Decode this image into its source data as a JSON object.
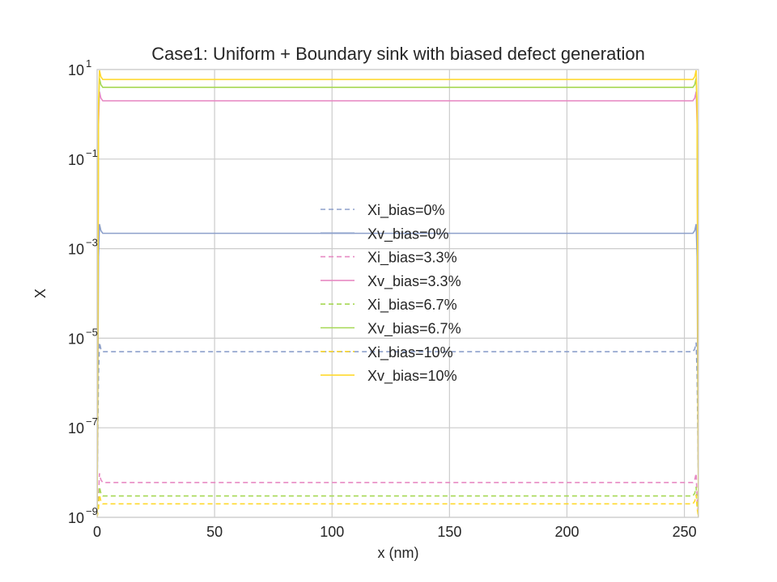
{
  "chart_data": {
    "type": "line",
    "title": "Case1: Uniform + Boundary sink with biased defect generation",
    "xlabel": "x (nm)",
    "ylabel": "X",
    "xlim": [
      0,
      256
    ],
    "ylim": [
      1e-09,
      10
    ],
    "yscale": "log",
    "grid": true,
    "legend_placement": "center",
    "x_ticks": [
      0,
      50,
      100,
      150,
      200,
      250
    ],
    "x_tick_labels": [
      "0",
      "50",
      "100",
      "150",
      "200",
      "250"
    ],
    "y_ticks": [
      {
        "value": 1e-09,
        "base": "10",
        "exp": "−9"
      },
      {
        "value": 1e-07,
        "base": "10",
        "exp": "−7"
      },
      {
        "value": 1e-05,
        "base": "10",
        "exp": "−5"
      },
      {
        "value": 0.001,
        "base": "10",
        "exp": "−3"
      },
      {
        "value": 0.1,
        "base": "10",
        "exp": "−1"
      },
      {
        "value": 10,
        "base": "10",
        "exp": "1"
      }
    ],
    "series": [
      {
        "name": "Xi_bias=0%",
        "style": "dashed",
        "color": "#8da0cb",
        "plateau": 5e-06,
        "edge": 5e-09
      },
      {
        "name": "Xv_bias=0%",
        "style": "solid",
        "color": "#8da0cb",
        "plateau": 0.0022,
        "edge": 1e-09
      },
      {
        "name": "Xi_bias=3.3%",
        "style": "dashed",
        "color": "#e78ac3",
        "plateau": 6e-09,
        "edge": 1e-09
      },
      {
        "name": "Xv_bias=3.3%",
        "style": "solid",
        "color": "#e78ac3",
        "plateau": 2.0,
        "edge": 1e-09
      },
      {
        "name": "Xi_bias=6.7%",
        "style": "dashed",
        "color": "#a6d854",
        "plateau": 3e-09,
        "edge": 1e-09
      },
      {
        "name": "Xv_bias=6.7%",
        "style": "solid",
        "color": "#a6d854",
        "plateau": 4.0,
        "edge": 1e-09
      },
      {
        "name": "Xi_bias=10%",
        "style": "dashed",
        "color": "#ffd92f",
        "plateau": 2e-09,
        "edge": 1e-09
      },
      {
        "name": "Xv_bias=10%",
        "style": "solid",
        "color": "#ffd92f",
        "plateau": 6.0,
        "edge": 1e-09
      }
    ]
  }
}
